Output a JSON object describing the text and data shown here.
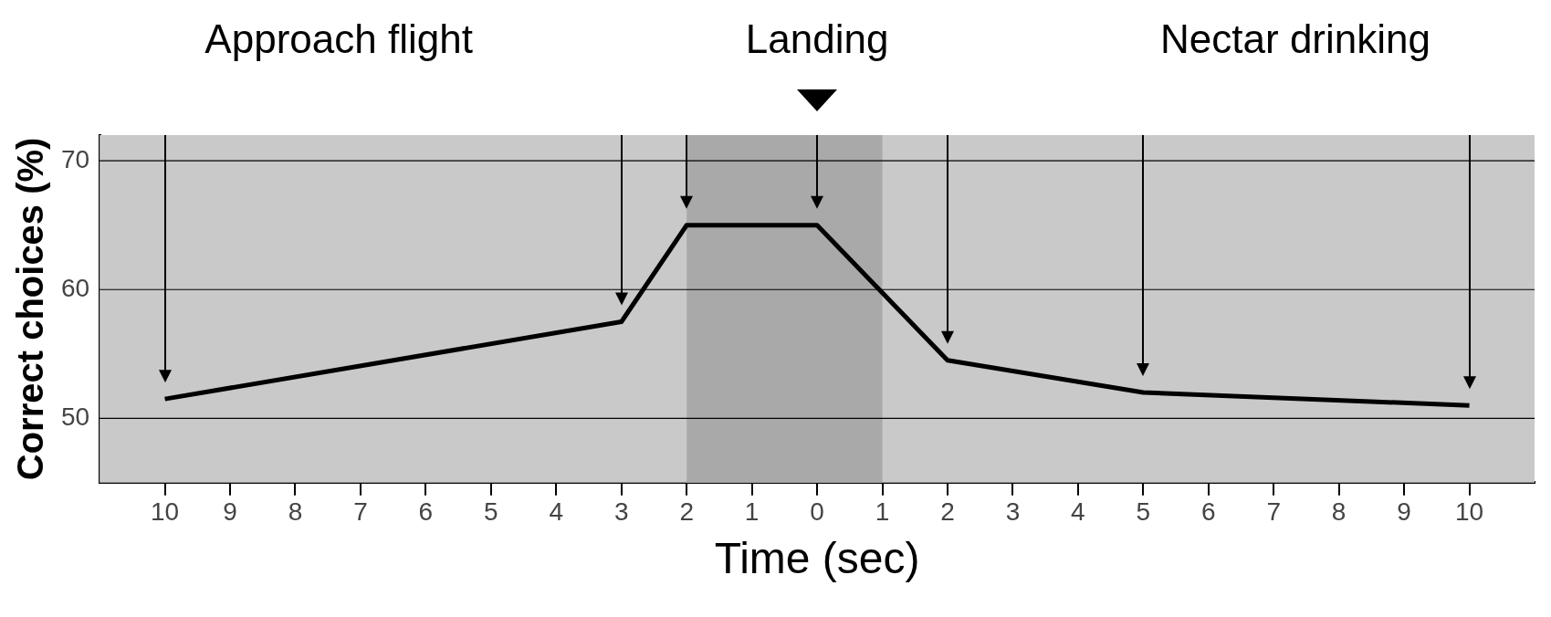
{
  "chart_data": {
    "type": "line",
    "xlabel": "Time (sec)",
    "ylabel": "Correct choices (%)",
    "annotations": [
      "Approach flight",
      "Landing",
      "Nectar drinking"
    ],
    "x": [
      -10,
      -3,
      -2,
      0,
      2,
      5,
      10
    ],
    "series": [
      {
        "color": "#000000",
        "values": [
          51.5,
          57.5,
          65,
          65,
          54.5,
          52,
          51
        ]
      }
    ],
    "xlim": [
      -11,
      11
    ],
    "xticks": [
      {
        "value": -10,
        "label": "10"
      },
      {
        "value": -9,
        "label": "9"
      },
      {
        "value": -8,
        "label": "8"
      },
      {
        "value": -7,
        "label": "7"
      },
      {
        "value": -6,
        "label": "6"
      },
      {
        "value": -5,
        "label": "5"
      },
      {
        "value": -4,
        "label": "4"
      },
      {
        "value": -3,
        "label": "3"
      },
      {
        "value": -2,
        "label": "2"
      },
      {
        "value": -1,
        "label": "1"
      },
      0,
      1,
      2,
      3,
      4,
      5,
      6,
      7,
      8,
      9,
      10
    ],
    "ylim": [
      45,
      72
    ],
    "yticks": [
      50,
      60,
      70
    ],
    "bands": [
      {
        "axis": "x",
        "from": -2,
        "to": 1,
        "color": "#a9a9a9"
      }
    ],
    "grid": "y",
    "legend": false,
    "marker": "none",
    "line_style": "solid"
  }
}
